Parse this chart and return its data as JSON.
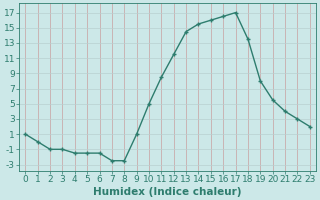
{
  "x": [
    0,
    1,
    2,
    3,
    4,
    5,
    6,
    7,
    8,
    9,
    10,
    11,
    12,
    13,
    14,
    15,
    16,
    17,
    18,
    19,
    20,
    21,
    22,
    23
  ],
  "y": [
    1,
    0,
    -1,
    -1,
    -1.5,
    -1.5,
    -1.5,
    -2.5,
    -2.5,
    1,
    5,
    8.5,
    11.5,
    14.5,
    15.5,
    16,
    16.5,
    17,
    13.5,
    8,
    5.5,
    4,
    3,
    2
  ],
  "line_color": "#2e7d6e",
  "marker": "+",
  "bg_color": "#cce8e8",
  "grid_color_x": "#c8a0a0",
  "grid_color_y": "#b8d0d0",
  "xlabel": "Humidex (Indice chaleur)",
  "xlim": [
    -0.5,
    23.5
  ],
  "ylim": [
    -3.8,
    18.2
  ],
  "yticks": [
    -3,
    -1,
    1,
    3,
    5,
    7,
    9,
    11,
    13,
    15,
    17
  ],
  "xticks": [
    0,
    1,
    2,
    3,
    4,
    5,
    6,
    7,
    8,
    9,
    10,
    11,
    12,
    13,
    14,
    15,
    16,
    17,
    18,
    19,
    20,
    21,
    22,
    23
  ],
  "tick_color": "#2e7d6e",
  "label_color": "#2e7d6e",
  "xlabel_fontsize": 7.5,
  "tick_fontsize": 6.5
}
